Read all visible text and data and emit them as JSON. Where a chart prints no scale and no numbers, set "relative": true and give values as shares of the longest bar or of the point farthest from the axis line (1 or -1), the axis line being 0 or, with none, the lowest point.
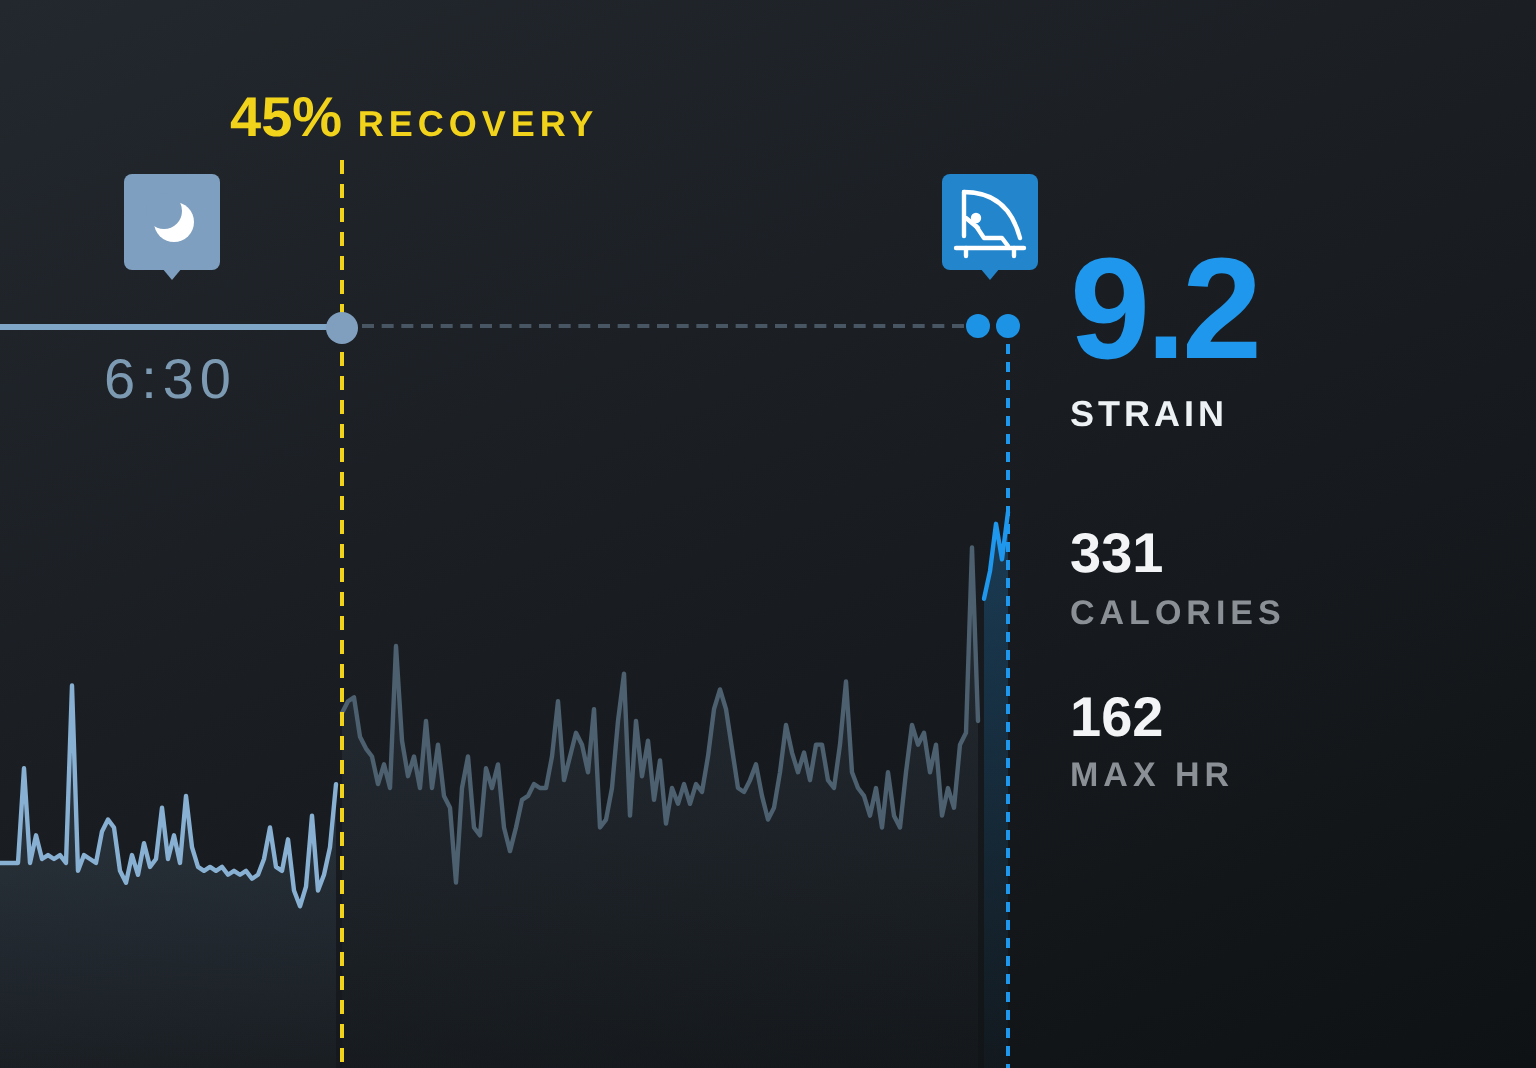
{
  "chart_data": {
    "type": "area",
    "relative": true,
    "tick_labels": false,
    "categories": [
      null,
      null,
      null,
      null,
      null,
      null,
      null,
      null,
      null,
      null,
      null,
      null,
      null,
      null,
      null,
      null,
      null,
      null,
      null,
      null,
      null,
      null,
      null,
      null,
      null,
      null,
      null,
      null,
      null,
      null,
      null,
      null,
      null,
      null,
      null,
      null,
      null,
      null,
      null,
      null,
      null,
      null,
      null,
      null,
      null,
      null,
      null,
      null,
      null,
      null,
      null,
      null,
      null,
      null,
      null,
      null,
      null,
      null,
      null,
      null,
      null,
      null,
      null,
      null,
      null,
      null,
      null,
      null,
      null,
      null,
      null,
      null,
      null,
      null,
      null,
      null,
      null,
      null,
      null,
      null,
      null,
      null,
      null,
      null,
      null,
      null,
      null,
      null,
      null,
      null,
      null,
      null,
      null,
      null,
      null,
      null,
      null,
      null,
      null,
      null,
      null,
      null,
      null,
      null,
      null,
      null,
      null,
      null,
      null,
      null,
      null,
      null,
      null,
      null,
      null,
      null,
      null,
      null,
      null,
      null,
      null,
      null,
      null,
      null,
      null,
      null,
      null,
      null,
      null,
      null,
      null,
      null,
      null,
      null,
      null,
      null,
      null,
      null,
      null,
      null,
      null,
      null,
      null,
      null,
      null,
      null,
      null,
      null,
      null,
      null,
      null,
      null,
      null,
      null,
      null,
      null,
      null,
      null,
      null,
      null,
      null,
      null,
      null,
      null,
      null,
      null,
      null,
      null,
      null
    ],
    "series": [
      {
        "color": "#88b0d2",
        "values": [
          0.11,
          0.11,
          0.11,
          0.11,
          0.35,
          0.11,
          0.18,
          0.12,
          0.13,
          0.12,
          0.13,
          0.11,
          0.56,
          0.09,
          0.13,
          0.12,
          0.11,
          0.19,
          0.22,
          0.2,
          0.09,
          0.06,
          0.13,
          0.08,
          0.16,
          0.1,
          0.12,
          0.25,
          0.12,
          0.18,
          0.11,
          0.28,
          0.15,
          0.1,
          0.09,
          0.1,
          0.09,
          0.1,
          0.08,
          0.09,
          0.08,
          0.09,
          0.07,
          0.08,
          0.12,
          0.2,
          0.1,
          0.09,
          0.17,
          0.04,
          0,
          0.05,
          0.23,
          0.04,
          0.08,
          0.15,
          0.31,
          null,
          null,
          null,
          null,
          null,
          null,
          null,
          null,
          null,
          null,
          null,
          null,
          null,
          null,
          null,
          null,
          null,
          null,
          null,
          null,
          null,
          null,
          null,
          null,
          null,
          null,
          null,
          null,
          null,
          null,
          null,
          null,
          null,
          null,
          null,
          null,
          null,
          null,
          null,
          null,
          null,
          null,
          null,
          null,
          null,
          null,
          null,
          null,
          null,
          null,
          null,
          null,
          null,
          null,
          null,
          null,
          null,
          null,
          null,
          null,
          null,
          null,
          null,
          null,
          null,
          null,
          null,
          null,
          null,
          null,
          null,
          null,
          null,
          null,
          null,
          null,
          null,
          null,
          null,
          null,
          null,
          null,
          null,
          null,
          null,
          null,
          null,
          null,
          null,
          null,
          null,
          null,
          null,
          null,
          null,
          null,
          null,
          null,
          null,
          null,
          null,
          null,
          null,
          null,
          null,
          null,
          null,
          null,
          null,
          null,
          null,
          null
        ]
      },
      {
        "color": "#4d6070",
        "values": [
          null,
          null,
          null,
          null,
          null,
          null,
          null,
          null,
          null,
          null,
          null,
          null,
          null,
          null,
          null,
          null,
          null,
          null,
          null,
          null,
          null,
          null,
          null,
          null,
          null,
          null,
          null,
          null,
          null,
          null,
          null,
          null,
          null,
          null,
          null,
          null,
          null,
          null,
          null,
          null,
          null,
          null,
          null,
          null,
          null,
          null,
          null,
          null,
          null,
          null,
          null,
          null,
          null,
          null,
          null,
          null,
          null,
          0.49,
          0.52,
          0.53,
          0.43,
          0.4,
          0.38,
          0.31,
          0.36,
          0.3,
          0.66,
          0.42,
          0.33,
          0.38,
          0.3,
          0.47,
          0.3,
          0.41,
          0.28,
          0.25,
          0.06,
          0.3,
          0.38,
          0.2,
          0.18,
          0.35,
          0.3,
          0.36,
          0.2,
          0.14,
          0.2,
          0.27,
          0.28,
          0.31,
          0.3,
          0.3,
          0.38,
          0.52,
          0.32,
          0.38,
          0.44,
          0.41,
          0.34,
          0.5,
          0.2,
          0.22,
          0.3,
          0.47,
          0.59,
          0.23,
          0.47,
          0.33,
          0.42,
          0.27,
          0.37,
          0.21,
          0.3,
          0.26,
          0.31,
          0.26,
          0.31,
          0.29,
          0.38,
          0.5,
          0.55,
          0.5,
          0.4,
          0.3,
          0.29,
          0.32,
          0.36,
          0.28,
          0.22,
          0.25,
          0.34,
          0.46,
          0.39,
          0.34,
          0.39,
          0.32,
          0.41,
          0.41,
          0.32,
          0.3,
          0.41,
          0.57,
          0.34,
          0.3,
          0.28,
          0.23,
          0.3,
          0.2,
          0.34,
          0.23,
          0.2,
          0.34,
          0.46,
          0.41,
          0.44,
          0.34,
          0.41,
          0.23,
          0.3,
          0.25,
          0.41,
          0.44,
          0.91,
          0.47,
          null,
          null,
          null,
          null,
          null
        ]
      },
      {
        "color": "#1e97ec",
        "values": [
          null,
          null,
          null,
          null,
          null,
          null,
          null,
          null,
          null,
          null,
          null,
          null,
          null,
          null,
          null,
          null,
          null,
          null,
          null,
          null,
          null,
          null,
          null,
          null,
          null,
          null,
          null,
          null,
          null,
          null,
          null,
          null,
          null,
          null,
          null,
          null,
          null,
          null,
          null,
          null,
          null,
          null,
          null,
          null,
          null,
          null,
          null,
          null,
          null,
          null,
          null,
          null,
          null,
          null,
          null,
          null,
          null,
          null,
          null,
          null,
          null,
          null,
          null,
          null,
          null,
          null,
          null,
          null,
          null,
          null,
          null,
          null,
          null,
          null,
          null,
          null,
          null,
          null,
          null,
          null,
          null,
          null,
          null,
          null,
          null,
          null,
          null,
          null,
          null,
          null,
          null,
          null,
          null,
          null,
          null,
          null,
          null,
          null,
          null,
          null,
          null,
          null,
          null,
          null,
          null,
          null,
          null,
          null,
          null,
          null,
          null,
          null,
          null,
          null,
          null,
          null,
          null,
          null,
          null,
          null,
          null,
          null,
          null,
          null,
          null,
          null,
          null,
          null,
          null,
          null,
          null,
          null,
          null,
          null,
          null,
          null,
          null,
          null,
          null,
          null,
          null,
          null,
          null,
          null,
          null,
          null,
          null,
          null,
          null,
          null,
          null,
          null,
          null,
          null,
          null,
          null,
          null,
          null,
          null,
          null,
          null,
          null,
          null,
          null,
          0.78,
          0.85,
          0.97,
          0.88,
          1
        ]
      }
    ],
    "annotations": [
      "45% RECOVERY",
      "6:30",
      "9.2",
      "STRAIN",
      "331",
      "CALORIES",
      "162",
      "MAX HR"
    ]
  }
}
